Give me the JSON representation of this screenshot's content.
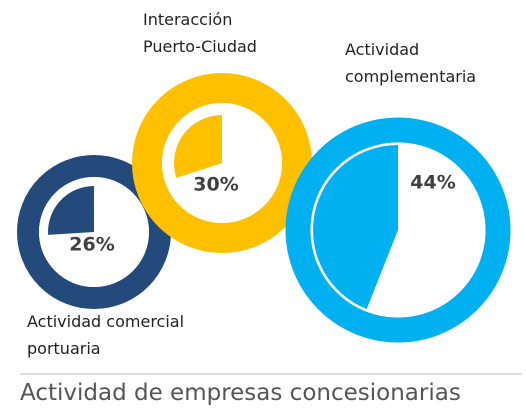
{
  "chart_data": {
    "type": "donut-pie",
    "title": "Actividad de empresas concesionarias",
    "categories": [
      "Actividad comercial portuaria",
      "Interacción Puerto-Ciudad",
      "Actividad complementaria"
    ],
    "values": [
      26,
      30,
      44
    ],
    "value_labels": [
      "26%",
      "30%",
      "44%"
    ],
    "colors": [
      "#234a7b",
      "#ffc000",
      "#00b0f0"
    ]
  }
}
